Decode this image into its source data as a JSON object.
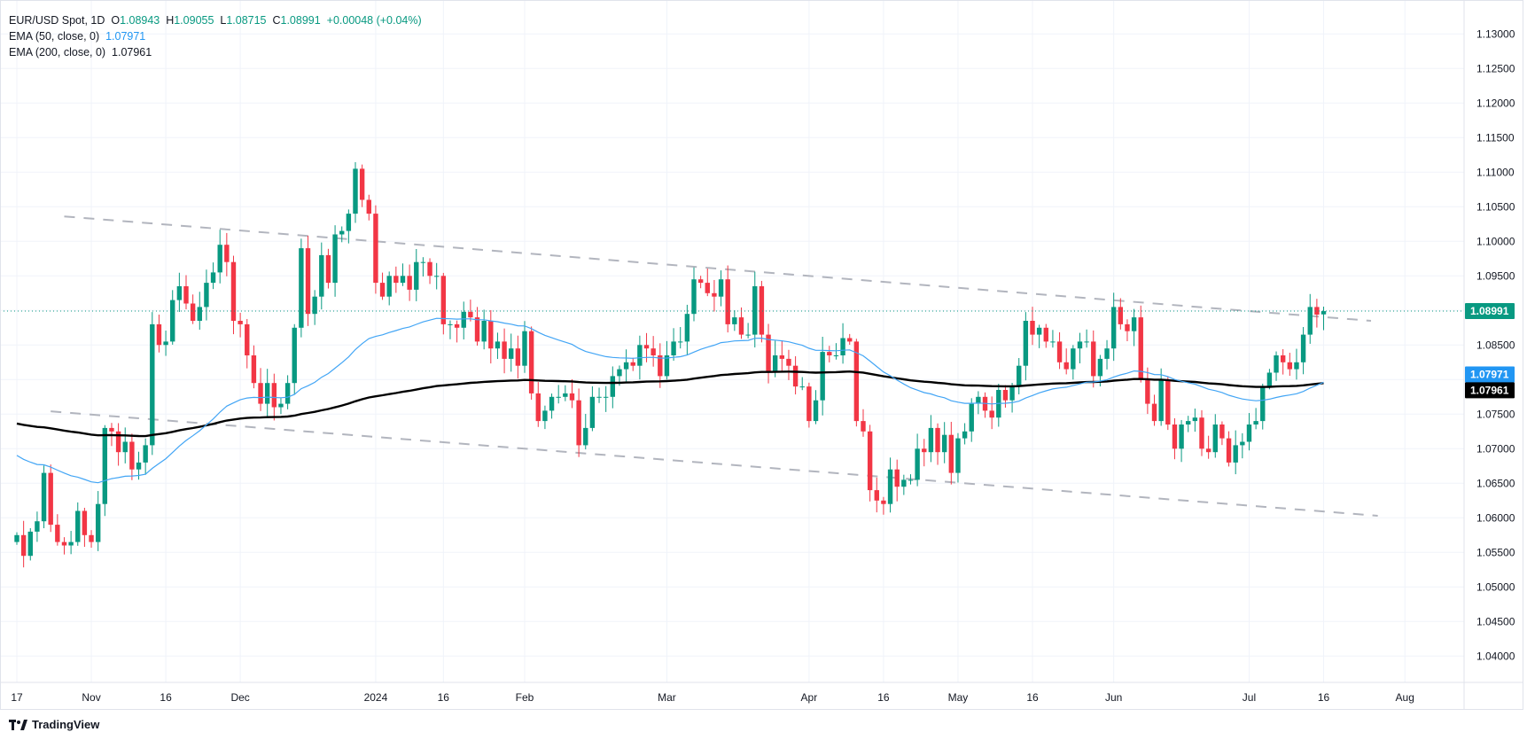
{
  "legend": {
    "symbol": "EUR/USD Spot, 1D",
    "o_label": "O",
    "o": "1.08943",
    "h_label": "H",
    "h": "1.09055",
    "l_label": "L",
    "l": "1.08715",
    "c_label": "C",
    "c": "1.08991",
    "change": "+0.00048 (+0.04%)",
    "ema50_label": "EMA (50, close, 0)",
    "ema50_value": "1.07971",
    "ema200_label": "EMA (200, close, 0)",
    "ema200_value": "1.07961"
  },
  "logo": {
    "text": "TradingView"
  },
  "colors": {
    "up": "#089981",
    "down": "#f23645",
    "ema50": "#42a5f5",
    "ema200": "#000000",
    "grid": "#f0f3fa",
    "trend": "#b2b5be"
  },
  "chart_data": {
    "type": "candlestick",
    "title": "EUR/USD Spot, 1D",
    "ylim": [
      1.0355,
      1.1335
    ],
    "y_ticks": [
      "1.13000",
      "1.12500",
      "1.12000",
      "1.11500",
      "1.11000",
      "1.10500",
      "1.10000",
      "1.09500",
      "1.09000",
      "1.08500",
      "1.08000",
      "1.07500",
      "1.07000",
      "1.06500",
      "1.06000",
      "1.05500",
      "1.05000",
      "1.04500",
      "1.04000"
    ],
    "hidden_y_ticks": [
      "1.09000",
      "1.08000"
    ],
    "x_ticks": [
      {
        "date": "2023-10-17",
        "label": "17"
      },
      {
        "date": "2023-11-01",
        "label": "Nov"
      },
      {
        "date": "2023-11-16",
        "label": "16"
      },
      {
        "date": "2023-12-01",
        "label": "Dec"
      },
      {
        "date": "2024-01-02",
        "label": "2024"
      },
      {
        "date": "2024-01-16",
        "label": "16"
      },
      {
        "date": "2024-02-01",
        "label": "Feb"
      },
      {
        "date": "2024-03-01",
        "label": "Mar"
      },
      {
        "date": "2024-04-01",
        "label": "Apr"
      },
      {
        "date": "2024-04-16",
        "label": "16"
      },
      {
        "date": "2024-05-01",
        "label": "May"
      },
      {
        "date": "2024-05-16",
        "label": "16"
      },
      {
        "date": "2024-06-03",
        "label": "Jun"
      },
      {
        "date": "2024-07-01",
        "label": "Jul"
      },
      {
        "date": "2024-07-16",
        "label": "16"
      },
      {
        "date": "2024-08-01",
        "label": "Aug",
        "bars_after_last": 12
      }
    ],
    "dates": [
      "2023-10-17",
      "2023-10-18",
      "2023-10-19",
      "2023-10-20",
      "2023-10-23",
      "2023-10-24",
      "2023-10-25",
      "2023-10-26",
      "2023-10-27",
      "2023-10-30",
      "2023-10-31",
      "2023-11-01",
      "2023-11-02",
      "2023-11-03",
      "2023-11-06",
      "2023-11-07",
      "2023-11-08",
      "2023-11-09",
      "2023-11-10",
      "2023-11-13",
      "2023-11-14",
      "2023-11-15",
      "2023-11-16",
      "2023-11-17",
      "2023-11-20",
      "2023-11-21",
      "2023-11-22",
      "2023-11-23",
      "2023-11-24",
      "2023-11-27",
      "2023-11-28",
      "2023-11-29",
      "2023-11-30",
      "2023-12-01",
      "2023-12-04",
      "2023-12-05",
      "2023-12-06",
      "2023-12-07",
      "2023-12-08",
      "2023-12-11",
      "2023-12-12",
      "2023-12-13",
      "2023-12-14",
      "2023-12-15",
      "2023-12-18",
      "2023-12-19",
      "2023-12-20",
      "2023-12-21",
      "2023-12-22",
      "2023-12-26",
      "2023-12-27",
      "2023-12-28",
      "2023-12-29",
      "2024-01-02",
      "2024-01-03",
      "2024-01-04",
      "2024-01-05",
      "2024-01-08",
      "2024-01-09",
      "2024-01-10",
      "2024-01-11",
      "2024-01-12",
      "2024-01-15",
      "2024-01-16",
      "2024-01-17",
      "2024-01-18",
      "2024-01-19",
      "2024-01-22",
      "2024-01-23",
      "2024-01-24",
      "2024-01-25",
      "2024-01-26",
      "2024-01-29",
      "2024-01-30",
      "2024-01-31",
      "2024-02-01",
      "2024-02-02",
      "2024-02-05",
      "2024-02-06",
      "2024-02-07",
      "2024-02-08",
      "2024-02-09",
      "2024-02-12",
      "2024-02-13",
      "2024-02-14",
      "2024-02-15",
      "2024-02-16",
      "2024-02-19",
      "2024-02-20",
      "2024-02-21",
      "2024-02-22",
      "2024-02-23",
      "2024-02-26",
      "2024-02-27",
      "2024-02-28",
      "2024-02-29",
      "2024-03-01",
      "2024-03-04",
      "2024-03-05",
      "2024-03-06",
      "2024-03-07",
      "2024-03-08",
      "2024-03-11",
      "2024-03-12",
      "2024-03-13",
      "2024-03-14",
      "2024-03-15",
      "2024-03-18",
      "2024-03-19",
      "2024-03-20",
      "2024-03-21",
      "2024-03-22",
      "2024-03-25",
      "2024-03-26",
      "2024-03-27",
      "2024-03-28",
      "2024-03-29",
      "2024-04-01",
      "2024-04-02",
      "2024-04-03",
      "2024-04-04",
      "2024-04-05",
      "2024-04-08",
      "2024-04-09",
      "2024-04-10",
      "2024-04-11",
      "2024-04-12",
      "2024-04-15",
      "2024-04-16",
      "2024-04-17",
      "2024-04-18",
      "2024-04-19",
      "2024-04-22",
      "2024-04-23",
      "2024-04-24",
      "2024-04-25",
      "2024-04-26",
      "2024-04-29",
      "2024-04-30",
      "2024-05-01",
      "2024-05-02",
      "2024-05-03",
      "2024-05-06",
      "2024-05-07",
      "2024-05-08",
      "2024-05-09",
      "2024-05-10",
      "2024-05-13",
      "2024-05-14",
      "2024-05-15",
      "2024-05-16",
      "2024-05-17",
      "2024-05-20",
      "2024-05-21",
      "2024-05-22",
      "2024-05-23",
      "2024-05-24",
      "2024-05-27",
      "2024-05-28",
      "2024-05-29",
      "2024-05-30",
      "2024-05-31",
      "2024-06-03",
      "2024-06-04",
      "2024-06-05",
      "2024-06-06",
      "2024-06-07",
      "2024-06-10",
      "2024-06-11",
      "2024-06-12",
      "2024-06-13",
      "2024-06-14",
      "2024-06-17",
      "2024-06-18",
      "2024-06-19",
      "2024-06-20",
      "2024-06-21",
      "2024-06-24",
      "2024-06-25",
      "2024-06-26",
      "2024-06-27",
      "2024-06-28",
      "2024-07-01",
      "2024-07-02",
      "2024-07-03",
      "2024-07-04",
      "2024-07-05",
      "2024-07-08",
      "2024-07-09",
      "2024-07-10",
      "2024-07-11",
      "2024-07-12",
      "2024-07-15",
      "2024-07-16"
    ],
    "close": [
      1.0575,
      1.0545,
      1.058,
      1.0595,
      1.0665,
      1.059,
      1.0565,
      1.056,
      1.0565,
      1.061,
      1.0575,
      1.0565,
      1.062,
      1.073,
      1.0725,
      1.0695,
      1.071,
      1.067,
      1.068,
      1.0705,
      1.088,
      1.085,
      1.0855,
      1.0915,
      1.0935,
      1.091,
      1.0885,
      1.0905,
      1.094,
      1.0955,
      1.0995,
      1.097,
      1.0885,
      1.088,
      1.0835,
      1.0795,
      1.0765,
      1.0795,
      1.076,
      1.0765,
      1.0795,
      1.0875,
      1.099,
      1.0895,
      1.092,
      1.098,
      1.094,
      1.101,
      1.1015,
      1.104,
      1.1105,
      1.106,
      1.104,
      1.094,
      1.092,
      1.095,
      1.094,
      1.095,
      1.093,
      1.097,
      1.097,
      1.095,
      1.095,
      1.088,
      1.088,
      1.0875,
      1.0898,
      1.089,
      1.0855,
      1.0885,
      1.0845,
      1.0855,
      1.083,
      1.0845,
      1.082,
      1.087,
      1.078,
      1.074,
      1.0755,
      1.0775,
      1.0775,
      1.078,
      1.077,
      1.0705,
      1.073,
      1.0775,
      1.0775,
      1.0775,
      1.0805,
      1.0815,
      1.0825,
      1.082,
      1.085,
      1.0845,
      1.0835,
      1.0805,
      1.0835,
      1.0855,
      1.0855,
      1.0895,
      1.0945,
      1.094,
      1.0925,
      1.092,
      1.0945,
      1.088,
      1.089,
      1.0865,
      1.0865,
      1.0935,
      1.0865,
      1.081,
      1.0835,
      1.083,
      1.082,
      1.079,
      1.079,
      1.074,
      1.077,
      1.084,
      1.0835,
      1.0835,
      1.086,
      1.0855,
      1.074,
      1.0725,
      1.064,
      1.0625,
      1.062,
      1.067,
      1.0645,
      1.0655,
      1.0655,
      1.07,
      1.0695,
      1.073,
      1.0695,
      1.072,
      1.0665,
      1.0715,
      1.0725,
      1.0765,
      1.0775,
      1.0755,
      1.0745,
      1.0785,
      1.077,
      1.079,
      1.082,
      1.0885,
      1.0865,
      1.0875,
      1.0855,
      1.0855,
      1.0825,
      1.0815,
      1.0845,
      1.0855,
      1.0855,
      1.0805,
      1.083,
      1.0845,
      1.0905,
      1.088,
      1.087,
      1.089,
      1.08,
      1.0765,
      1.074,
      1.08,
      1.0735,
      1.07,
      1.0735,
      1.074,
      1.0745,
      1.07,
      1.0695,
      1.0735,
      1.0715,
      1.068,
      1.0705,
      1.071,
      1.0735,
      1.074,
      1.079,
      1.081,
      1.0835,
      1.0825,
      1.0815,
      1.0825,
      1.0865,
      1.0905,
      1.0894,
      1.0899
    ],
    "first_open": 1.0565,
    "last_bar": {
      "open": 1.08943,
      "high": 1.09055,
      "low": 1.08715,
      "close": 1.08991
    },
    "ema50_start": 1.0695,
    "ema200_start": 1.0738,
    "trendlines": [
      {
        "name": "upper",
        "from": {
          "index": 7,
          "price": 1.1036
        },
        "to": {
          "index": 200,
          "price": 1.0885
        }
      },
      {
        "name": "lower",
        "from": {
          "index": 5,
          "price": 1.0754
        },
        "to": {
          "index": 201,
          "price": 1.0603
        }
      }
    ],
    "price_tags": [
      {
        "name": "last-price",
        "value": 1.08991,
        "text": "1.08991",
        "color": "#089981"
      },
      {
        "name": "ema50",
        "value": 1.07971,
        "text": "1.07971",
        "color": "#2196f3"
      },
      {
        "name": "ema200",
        "value": 1.07961,
        "text": "1.07961",
        "color": "#000000"
      }
    ]
  }
}
